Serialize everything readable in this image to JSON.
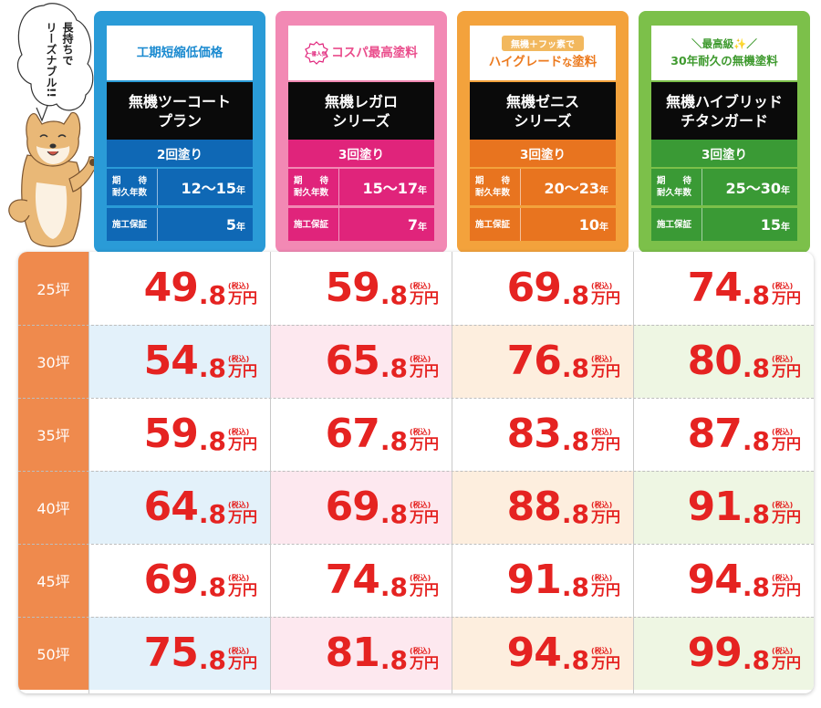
{
  "speech": {
    "line1": "長持ちで",
    "line2": "リーズナブル!!"
  },
  "plans": [
    {
      "tagline": "工期短縮低価格",
      "badge": "",
      "name_l1": "無機ツーコート",
      "name_l2": "プラン",
      "coats": "2回塗り",
      "durability_label_l1": "期　　待",
      "durability_label_l2": "耐久年数",
      "durability": "12〜15",
      "warranty_label": "施工保証",
      "warranty": "5",
      "year_unit": "年",
      "colors": {
        "border": "#2a9bd7",
        "text": "#1a8ad0",
        "band": "#0f68b5"
      }
    },
    {
      "tagline": "コスパ最高塗料",
      "badge": "一番人気",
      "name_l1": "無機レガロ",
      "name_l2": "シリーズ",
      "coats": "3回塗り",
      "durability_label_l1": "期　　待",
      "durability_label_l2": "耐久年数",
      "durability": "15〜17",
      "warranty_label": "施工保証",
      "warranty": "7",
      "year_unit": "年",
      "colors": {
        "border": "#f289b4",
        "text": "#ea4d8c",
        "band": "#e0247b"
      }
    },
    {
      "tagline_pill": "無機＋フッ素で",
      "tagline_pre": "ハイグレード",
      "tagline_mid": "な",
      "tagline_post": "塗料",
      "name_l1": "無機ゼニス",
      "name_l2": "シリーズ",
      "coats": "3回塗り",
      "durability_label_l1": "期　　待",
      "durability_label_l2": "耐久年数",
      "durability": "20〜23",
      "warranty_label": "施工保証",
      "warranty": "10",
      "year_unit": "年",
      "colors": {
        "border": "#f3a23c",
        "text": "#ec7a1e",
        "band": "#e8741f"
      }
    },
    {
      "tagline_l1": "＼最高級✨／",
      "tagline_l2": "30年耐久の無機塗料",
      "name_l1": "無機ハイブリッド",
      "name_l2": "チタンガード",
      "coats": "3回塗り",
      "durability_label_l1": "期　　待",
      "durability_label_l2": "耐久年数",
      "durability": "25〜30",
      "warranty_label": "施工保証",
      "warranty": "15",
      "year_unit": "年",
      "colors": {
        "border": "#7cc04a",
        "text": "#3f9a2f",
        "band": "#3a9a35"
      }
    }
  ],
  "table": {
    "tax_label": "(税込)",
    "unit": "万円",
    "column_tints": [
      "#e3f1fa",
      "#fde8ef",
      "#fdeede",
      "#eef6e3"
    ],
    "size_color": "#ef8a4d",
    "price_color": "#e52321",
    "rows": [
      {
        "size": "25坪",
        "prices": [
          {
            "int": "49",
            "dec": ".8"
          },
          {
            "int": "59",
            "dec": ".8"
          },
          {
            "int": "69",
            "dec": ".8"
          },
          {
            "int": "74",
            "dec": ".8"
          }
        ]
      },
      {
        "size": "30坪",
        "prices": [
          {
            "int": "54",
            "dec": ".8"
          },
          {
            "int": "65",
            "dec": ".8"
          },
          {
            "int": "76",
            "dec": ".8"
          },
          {
            "int": "80",
            "dec": ".8"
          }
        ]
      },
      {
        "size": "35坪",
        "prices": [
          {
            "int": "59",
            "dec": ".8"
          },
          {
            "int": "67",
            "dec": ".8"
          },
          {
            "int": "83",
            "dec": ".8"
          },
          {
            "int": "87",
            "dec": ".8"
          }
        ]
      },
      {
        "size": "40坪",
        "prices": [
          {
            "int": "64",
            "dec": ".8"
          },
          {
            "int": "69",
            "dec": ".8"
          },
          {
            "int": "88",
            "dec": ".8"
          },
          {
            "int": "91",
            "dec": ".8"
          }
        ]
      },
      {
        "size": "45坪",
        "prices": [
          {
            "int": "69",
            "dec": ".8"
          },
          {
            "int": "74",
            "dec": ".8"
          },
          {
            "int": "91",
            "dec": ".8"
          },
          {
            "int": "94",
            "dec": ".8"
          }
        ]
      },
      {
        "size": "50坪",
        "prices": [
          {
            "int": "75",
            "dec": ".8"
          },
          {
            "int": "81",
            "dec": ".8"
          },
          {
            "int": "94",
            "dec": ".8"
          },
          {
            "int": "99",
            "dec": ".8"
          }
        ]
      }
    ]
  }
}
